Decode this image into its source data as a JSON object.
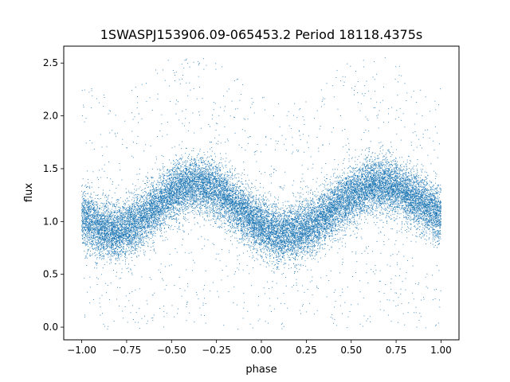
{
  "chart_data": {
    "type": "scatter",
    "title": "1SWASPJ153906.09-065453.2 Period 18118.4375s",
    "xlabel": "phase",
    "ylabel": "flux",
    "xlim": [
      -1.1,
      1.1
    ],
    "ylim": [
      -0.12,
      2.66
    ],
    "xticks": [
      -1.0,
      -0.75,
      -0.5,
      -0.25,
      0.0,
      0.25,
      0.5,
      0.75,
      1.0
    ],
    "xtick_labels": [
      "−1.00",
      "−0.75",
      "−0.50",
      "−0.25",
      "0.00",
      "0.25",
      "0.50",
      "0.75",
      "1.00"
    ],
    "yticks": [
      0.0,
      0.5,
      1.0,
      1.5,
      2.0,
      2.5
    ],
    "ytick_labels": [
      "0.0",
      "0.5",
      "1.0",
      "1.5",
      "2.0",
      "2.5"
    ],
    "grid": false,
    "legend": "none",
    "marker_color": "#1f77b4",
    "series": [
      {
        "x_range": [
          -1.0,
          1.0
        ],
        "trend": {
          "phase": [
            -1.0,
            -0.9,
            -0.8,
            -0.7,
            -0.6,
            -0.5,
            -0.4,
            -0.3,
            -0.2,
            -0.1,
            0.0,
            0.1,
            0.2,
            0.3,
            0.4,
            0.5,
            0.6,
            0.7,
            0.8,
            0.9,
            1.0
          ],
          "flux": [
            1.05,
            0.93,
            0.9,
            0.98,
            1.12,
            1.27,
            1.34,
            1.33,
            1.24,
            1.08,
            0.95,
            0.88,
            0.9,
            0.98,
            1.12,
            1.25,
            1.33,
            1.35,
            1.28,
            1.17,
            1.05
          ]
        },
        "scatter_sd": 0.13,
        "point_count": 22000
      }
    ]
  }
}
